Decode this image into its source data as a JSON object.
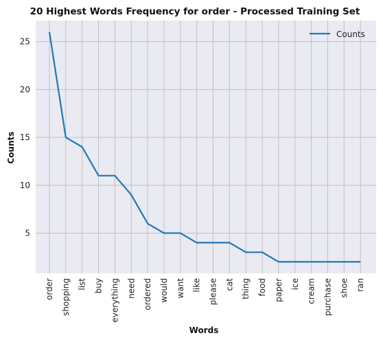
{
  "chart_data": {
    "type": "line",
    "title": "20 Highest Words Frequency for order - Processed Training Set",
    "xlabel": "Words",
    "ylabel": "Counts",
    "categories": [
      "order",
      "shopping",
      "list",
      "buy",
      "everything",
      "need",
      "ordered",
      "would",
      "want",
      "like",
      "please",
      "cat",
      "thing",
      "food",
      "paper",
      "ice",
      "cream",
      "purchase",
      "shoe",
      "ran"
    ],
    "series": [
      {
        "name": "Counts",
        "values": [
          26,
          15,
          14,
          11,
          11,
          9,
          6,
          5,
          5,
          4,
          4,
          4,
          3,
          3,
          2,
          2,
          2,
          2,
          2,
          2
        ]
      }
    ],
    "yticks": [
      5,
      10,
      15,
      20,
      25
    ],
    "ylim": [
      0.8,
      27.2
    ],
    "grid": true,
    "legend_position": "top-right",
    "colors": {
      "line": "#1f77b4",
      "plot_bg": "#eaeaf2",
      "grid": "#c0c0c0"
    }
  }
}
